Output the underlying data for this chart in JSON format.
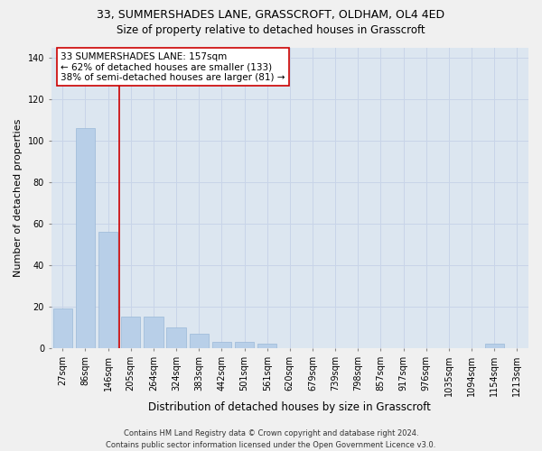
{
  "title1": "33, SUMMERSHADES LANE, GRASSCROFT, OLDHAM, OL4 4ED",
  "title2": "Size of property relative to detached houses in Grasscroft",
  "xlabel": "Distribution of detached houses by size in Grasscroft",
  "ylabel": "Number of detached properties",
  "bar_labels": [
    "27sqm",
    "86sqm",
    "146sqm",
    "205sqm",
    "264sqm",
    "324sqm",
    "383sqm",
    "442sqm",
    "501sqm",
    "561sqm",
    "620sqm",
    "679sqm",
    "739sqm",
    "798sqm",
    "857sqm",
    "917sqm",
    "976sqm",
    "1035sqm",
    "1094sqm",
    "1154sqm",
    "1213sqm"
  ],
  "bar_values": [
    19,
    106,
    56,
    15,
    15,
    10,
    7,
    3,
    3,
    2,
    0,
    0,
    0,
    0,
    0,
    0,
    0,
    0,
    0,
    2,
    0
  ],
  "bar_color": "#b8cfe8",
  "bar_edgecolor": "#9ab8d8",
  "vline_color": "#cc0000",
  "vline_x_index": 2.5,
  "annotation_text": "33 SUMMERSHADES LANE: 157sqm\n← 62% of detached houses are smaller (133)\n38% of semi-detached houses are larger (81) →",
  "annotation_box_facecolor": "#ffffff",
  "annotation_box_edgecolor": "#cc0000",
  "ylim": [
    0,
    145
  ],
  "yticks": [
    0,
    20,
    40,
    60,
    80,
    100,
    120,
    140
  ],
  "grid_color": "#c8d4e8",
  "plot_bg_color": "#dce6f0",
  "fig_bg_color": "#f0f0f0",
  "title1_fontsize": 9,
  "title2_fontsize": 8.5,
  "xlabel_fontsize": 8.5,
  "ylabel_fontsize": 8,
  "tick_fontsize": 7,
  "annotation_fontsize": 7.5,
  "footer_fontsize": 6,
  "footer": "Contains HM Land Registry data © Crown copyright and database right 2024.\nContains public sector information licensed under the Open Government Licence v3.0."
}
